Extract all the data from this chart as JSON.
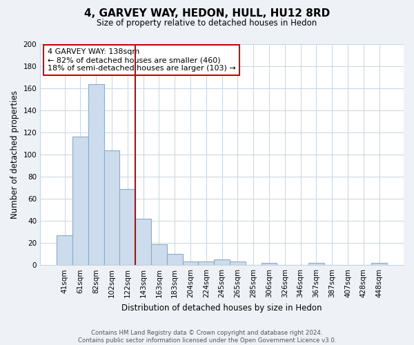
{
  "title": "4, GARVEY WAY, HEDON, HULL, HU12 8RD",
  "subtitle": "Size of property relative to detached houses in Hedon",
  "bar_labels": [
    "41sqm",
    "61sqm",
    "82sqm",
    "102sqm",
    "122sqm",
    "143sqm",
    "163sqm",
    "183sqm",
    "204sqm",
    "224sqm",
    "245sqm",
    "265sqm",
    "285sqm",
    "306sqm",
    "326sqm",
    "346sqm",
    "367sqm",
    "387sqm",
    "407sqm",
    "428sqm",
    "448sqm"
  ],
  "bar_values": [
    27,
    116,
    164,
    104,
    69,
    42,
    19,
    10,
    3,
    3,
    5,
    3,
    0,
    2,
    0,
    0,
    2,
    0,
    0,
    0,
    2
  ],
  "bar_color": "#ccdcec",
  "bar_edge_color": "#8aaac8",
  "ylabel": "Number of detached properties",
  "xlabel": "Distribution of detached houses by size in Hedon",
  "ylim": [
    0,
    200
  ],
  "yticks": [
    0,
    20,
    40,
    60,
    80,
    100,
    120,
    140,
    160,
    180,
    200
  ],
  "vline_color": "#cc0000",
  "vline_idx": 4.5,
  "annotation_title": "4 GARVEY WAY: 138sqm",
  "annotation_line1": "← 82% of detached houses are smaller (460)",
  "annotation_line2": "18% of semi-detached houses are larger (103) →",
  "annotation_box_color": "#ffffff",
  "annotation_box_edge": "#cc0000",
  "footer1": "Contains HM Land Registry data © Crown copyright and database right 2024.",
  "footer2": "Contains public sector information licensed under the Open Government Licence v3.0.",
  "background_color": "#eef2f7",
  "plot_background": "#ffffff",
  "grid_color": "#c8d4e0"
}
